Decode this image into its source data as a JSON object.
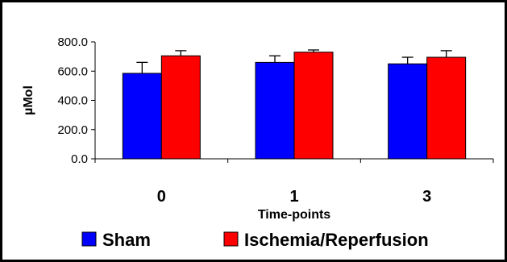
{
  "chart_data": {
    "type": "bar",
    "title": "",
    "xlabel": "Time-points",
    "ylabel": "µMol",
    "ylim": [
      0,
      800
    ],
    "yticks": [
      "0.0",
      "200.0",
      "400.0",
      "600.0",
      "800.0"
    ],
    "categories": [
      "0",
      "1",
      "3"
    ],
    "grid": false,
    "legend_position": "bottom",
    "series": [
      {
        "name": "Sham",
        "color": "#0000ff",
        "values": [
          585,
          660,
          650
        ],
        "errors": [
          75,
          45,
          45
        ]
      },
      {
        "name": "Ischemia/Reperfusion",
        "color": "#ff0000",
        "values": [
          705,
          730,
          695
        ],
        "errors": [
          35,
          15,
          45
        ]
      }
    ]
  }
}
